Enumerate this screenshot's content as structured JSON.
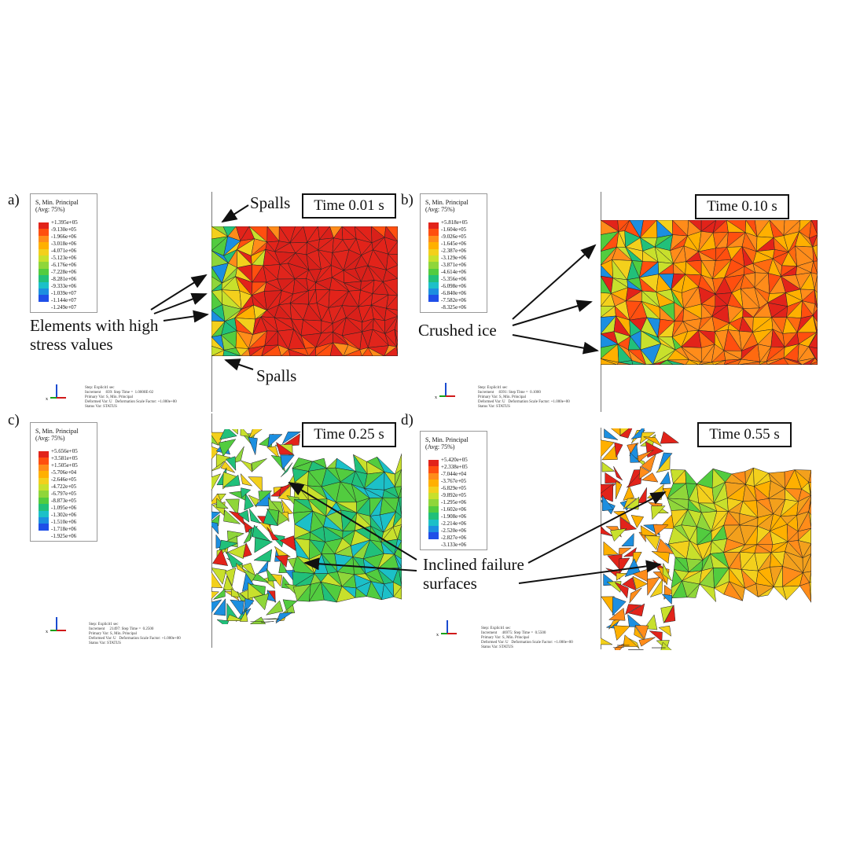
{
  "panels": [
    {
      "id": "a",
      "label": "a)",
      "time": "Time 0.01 s",
      "legend": {
        "title": "S, Min. Principal\n(Avg: 75%)",
        "values": [
          "+1.395e+05",
          "-9.130e+05",
          "-1.966e+06",
          "-3.018e+06",
          "-4.071e+06",
          "-5.123e+06",
          "-6.176e+06",
          "-7.228e+06",
          "-8.281e+06",
          "-9.333e+06",
          "-1.039e+07",
          "-1.144e+07",
          "-1.249e+07"
        ]
      },
      "info": "Step: Explicit1 sec\nIncrement     839: Step Time =  1.0000E-02\nPrimary Var: S, Min. Principal\nDeformed Var: U   Deformation Scale Factor: +1.000e+00\nStatus Var: STATUS",
      "annotations": [
        "Spalls",
        "Elements with high\nstress values",
        "Spalls"
      ]
    },
    {
      "id": "b",
      "label": "b)",
      "time": "Time 0.10 s",
      "legend": {
        "title": "S, Min. Principal\n(Avg: 75%)",
        "values": [
          "+5.818e+05",
          "-1.604e+05",
          "-9.026e+05",
          "-1.645e+06",
          "-2.387e+06",
          "-3.129e+06",
          "-3.871e+06",
          "-4.614e+06",
          "-5.356e+06",
          "-6.098e+06",
          "-6.840e+06",
          "-7.582e+06",
          "-8.325e+06"
        ]
      },
      "info": "Step: Explicit1 sec\nIncrement     8391: Step Time =  0.1000\nPrimary Var: S, Min. Principal\nDeformed Var: U   Deformation Scale Factor: +1.000e+00\nStatus Var: STATUS",
      "annotations": [
        "Crushed ice"
      ]
    },
    {
      "id": "c",
      "label": "c)",
      "time": "Time 0.25 s",
      "legend": {
        "title": "S, Min. Principal\n(Avg: 75%)",
        "values": [
          "+5.656e+05",
          "+3.581e+05",
          "+1.505e+05",
          "-5.706e+04",
          "-2.646e+05",
          "-4.722e+05",
          "-6.797e+05",
          "-8.873e+05",
          "-1.095e+06",
          "-1.302e+06",
          "-1.510e+06",
          "-1.718e+06",
          "-1.925e+06"
        ]
      },
      "info": "Step: Explicit1 sec\nIncrement     21497: Step Time =  0.2500\nPrimary Var: S, Min. Principal\nDeformed Var: U   Deformation Scale Factor: +1.000e+00\nStatus Var: STATUS",
      "annotations": [
        "Inclined failure\nsurfaces"
      ]
    },
    {
      "id": "d",
      "label": "d)",
      "time": "Time 0.55 s",
      "legend": {
        "title": "S, Min. Principal\n(Avg: 75%)",
        "values": [
          "+5.420e+05",
          "+2.338e+05",
          "-7.044e+04",
          "-3.767e+05",
          "-6.829e+05",
          "-9.892e+05",
          "-1.295e+06",
          "-1.602e+06",
          "-1.908e+06",
          "-2.214e+06",
          "-2.520e+06",
          "-2.827e+06",
          "-3.133e+06"
        ]
      },
      "info": "Step: Explicit1 sec\nIncrement     46975: Step Time =  0.5500\nPrimary Var: S, Min. Principal\nDeformed Var: U   Deformation Scale Factor: +1.000e+00\nStatus Var: STATUS",
      "annotations": []
    }
  ],
  "colors": {
    "legend_scale": [
      "#e2231a",
      "#ff4f0f",
      "#ff8c1a",
      "#ffb000",
      "#f3d01c",
      "#c8e02c",
      "#8fd63a",
      "#52cc3f",
      "#21c07a",
      "#1cc0c8",
      "#1c8fe0",
      "#1f4fe8",
      "#2020c8"
    ]
  }
}
